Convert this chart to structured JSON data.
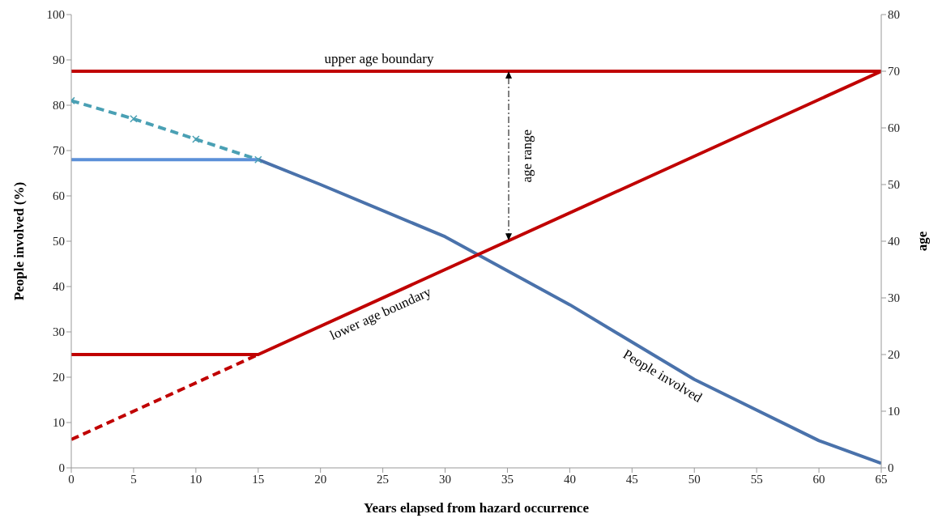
{
  "chart_data": {
    "type": "line",
    "xlabel": "Years elapsed from hazard occurrence",
    "ylabel": "People involved (%)",
    "y2label": "age",
    "xlim": [
      0,
      65
    ],
    "xticks": [
      0,
      5,
      10,
      15,
      20,
      25,
      30,
      35,
      40,
      45,
      50,
      55,
      60,
      65
    ],
    "ylim": [
      0,
      100
    ],
    "yticks": [
      0,
      10,
      20,
      30,
      40,
      50,
      60,
      70,
      80,
      90,
      100
    ],
    "y2lim": [
      0,
      80
    ],
    "y2ticks": [
      0,
      10,
      20,
      30,
      40,
      50,
      60,
      70,
      80
    ],
    "grid": false,
    "legend": false,
    "annotations": [
      "age range"
    ],
    "series": [
      {
        "color": "#4aa0b4",
        "x": [
          0,
          5,
          10,
          15
        ],
        "values": [
          81,
          77,
          72.5,
          68
        ],
        "marker": "cross",
        "line_style": "dashed"
      },
      {
        "color": "#5b90d8",
        "x": [
          0,
          15
        ],
        "values": [
          68,
          68
        ],
        "line_style": "solid"
      },
      {
        "name": "People involved",
        "color": "#4a72ab",
        "x": [
          15,
          20,
          30,
          40,
          50,
          60,
          65
        ],
        "values": [
          68,
          62.5,
          51,
          36,
          19.5,
          6,
          1
        ],
        "line_style": "solid"
      },
      {
        "name": "upper age boundary",
        "color": "#c00000",
        "axis": "y2",
        "x": [
          0,
          65
        ],
        "values": [
          70,
          70
        ],
        "line_style": "solid"
      },
      {
        "color": "#c00000",
        "axis": "y2",
        "x": [
          0,
          15
        ],
        "values": [
          5,
          20
        ],
        "line_style": "dashed"
      },
      {
        "name": "lower age boundary",
        "color": "#c00000",
        "axis": "y2",
        "x": [
          0,
          15,
          65
        ],
        "values": [
          20,
          20,
          70
        ],
        "line_style": "solid"
      }
    ]
  }
}
